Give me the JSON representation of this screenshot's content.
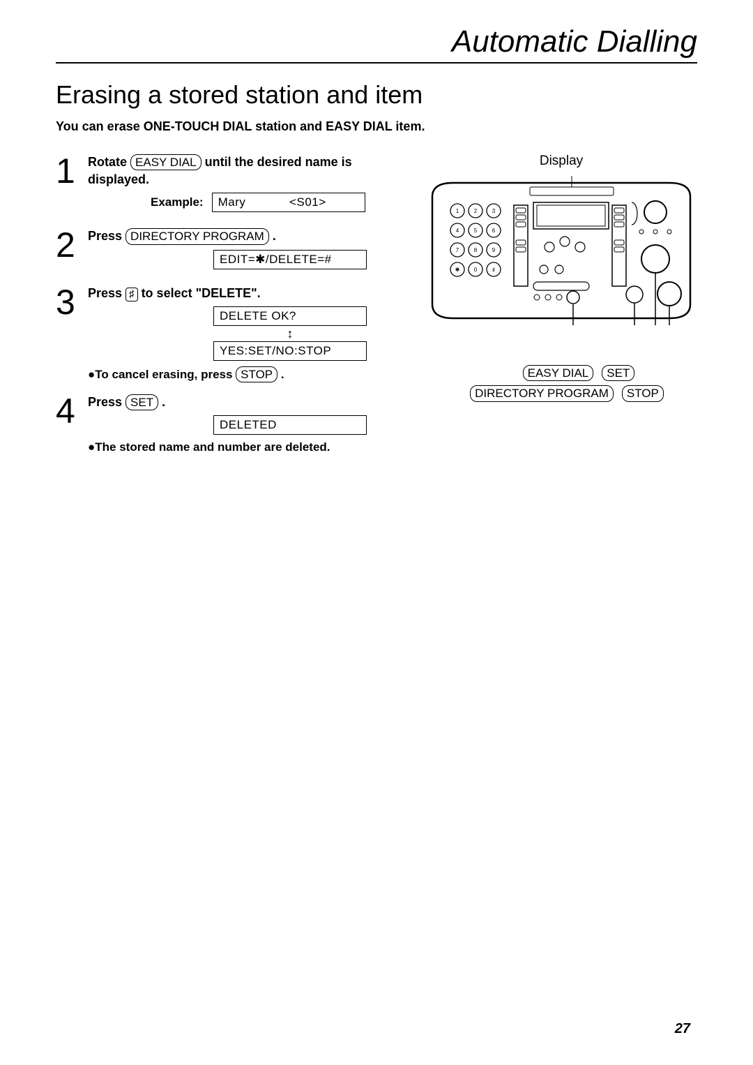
{
  "header": {
    "title": "Automatic Dialling"
  },
  "section": {
    "title": "Erasing a stored station and item",
    "intro": "You can erase ONE-TOUCH DIAL station and EASY DIAL item."
  },
  "steps": [
    {
      "num": "1",
      "pre": "Rotate ",
      "key": "EASY DIAL",
      "post": " until the desired name is displayed.",
      "exampleLabel": "Example:",
      "display": "Mary            <S01>"
    },
    {
      "num": "2",
      "pre": "Press ",
      "key": "DIRECTORY PROGRAM",
      "post": " .",
      "display": "EDIT=✱/DELETE=#"
    },
    {
      "num": "3",
      "pre": "Press ",
      "smallkey": "♯",
      "post": " to select \"DELETE\".",
      "display1": "DELETE OK?",
      "display2": "YES:SET/NO:STOP",
      "bullet": "●To cancel erasing, press ",
      "bulletKey": "STOP",
      "bulletPost": " ."
    },
    {
      "num": "4",
      "pre": "Press ",
      "key": "SET",
      "post": " .",
      "display": "DELETED",
      "bullet": "●The stored name and number are deleted."
    }
  ],
  "illustration": {
    "displayLabel": "Display",
    "keypad": [
      "1",
      "2",
      "3",
      "4",
      "5",
      "6",
      "7",
      "8",
      "9",
      "✱",
      "0",
      "♯"
    ],
    "buttons": {
      "easyDial": "EASY DIAL",
      "set": "SET",
      "directoryProgram": "DIRECTORY PROGRAM",
      "stop": "STOP"
    }
  },
  "pageNumber": "27"
}
